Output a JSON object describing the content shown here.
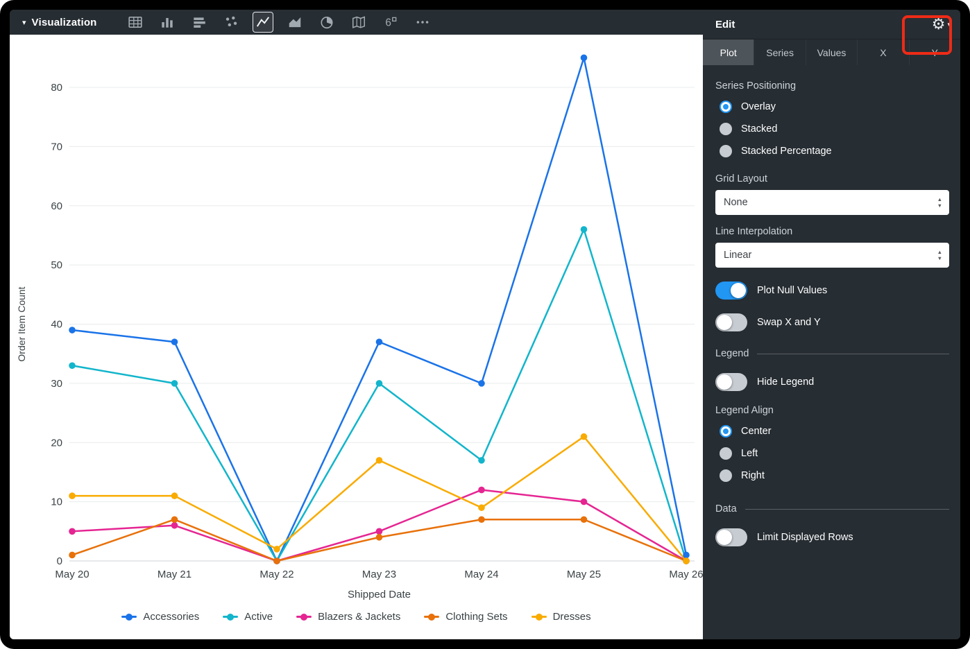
{
  "toolbar": {
    "title": "Visualization",
    "icons": [
      {
        "name": "table-icon",
        "selected": false
      },
      {
        "name": "column-chart-icon",
        "selected": false
      },
      {
        "name": "bar-chart-icon",
        "selected": false
      },
      {
        "name": "scatter-chart-icon",
        "selected": false
      },
      {
        "name": "line-chart-icon",
        "selected": true
      },
      {
        "name": "area-chart-icon",
        "selected": false
      },
      {
        "name": "pie-chart-icon",
        "selected": false
      },
      {
        "name": "map-chart-icon",
        "selected": false
      },
      {
        "name": "single-value-icon",
        "selected": false
      },
      {
        "name": "more-icon",
        "selected": false
      }
    ]
  },
  "panel": {
    "title": "Edit",
    "tabs": [
      {
        "label": "Plot",
        "active": true
      },
      {
        "label": "Series",
        "active": false
      },
      {
        "label": "Values",
        "active": false
      },
      {
        "label": "X",
        "active": false
      },
      {
        "label": "Y",
        "active": false
      }
    ],
    "series_positioning": {
      "label": "Series Positioning",
      "options": [
        {
          "label": "Overlay",
          "selected": true
        },
        {
          "label": "Stacked",
          "selected": false
        },
        {
          "label": "Stacked Percentage",
          "selected": false
        }
      ]
    },
    "grid_layout": {
      "label": "Grid Layout",
      "value": "None"
    },
    "line_interpolation": {
      "label": "Line Interpolation",
      "value": "Linear"
    },
    "plot_null": {
      "label": "Plot Null Values",
      "on": true
    },
    "swap_xy": {
      "label": "Swap X and Y",
      "on": false
    },
    "legend_section": "Legend",
    "hide_legend": {
      "label": "Hide Legend",
      "on": false
    },
    "legend_align": {
      "label": "Legend Align",
      "options": [
        {
          "label": "Center",
          "selected": true
        },
        {
          "label": "Left",
          "selected": false
        },
        {
          "label": "Right",
          "selected": false
        }
      ]
    },
    "data_section": "Data",
    "limit_rows": {
      "label": "Limit Displayed Rows",
      "on": false
    }
  },
  "chart_data": {
    "type": "line",
    "x": [
      "May 20",
      "May 21",
      "May 22",
      "May 23",
      "May 24",
      "May 25",
      "May 26"
    ],
    "xlabel": "Shipped Date",
    "ylabel": "Order Item Count",
    "ylim": [
      0,
      87
    ],
    "yticks": [
      0,
      10,
      20,
      30,
      40,
      50,
      60,
      70,
      80
    ],
    "grid": true,
    "legend_position": "bottom",
    "series": [
      {
        "name": "Accessories",
        "color": "#1A73E8",
        "values": [
          39,
          37,
          0,
          37,
          30,
          85,
          1
        ]
      },
      {
        "name": "Active",
        "color": "#12B5CB",
        "values": [
          33,
          30,
          0,
          30,
          17,
          56,
          0
        ]
      },
      {
        "name": "Blazers & Jackets",
        "color": "#E52592",
        "values": [
          5,
          6,
          0,
          5,
          12,
          10,
          0
        ]
      },
      {
        "name": "Clothing Sets",
        "color": "#E8710A",
        "values": [
          1,
          7,
          0,
          4,
          7,
          7,
          0
        ]
      },
      {
        "name": "Dresses",
        "color": "#F9AB00",
        "values": [
          11,
          11,
          2,
          17,
          9,
          21,
          0
        ]
      }
    ]
  },
  "annotation": {
    "color": "#ee2b17"
  }
}
